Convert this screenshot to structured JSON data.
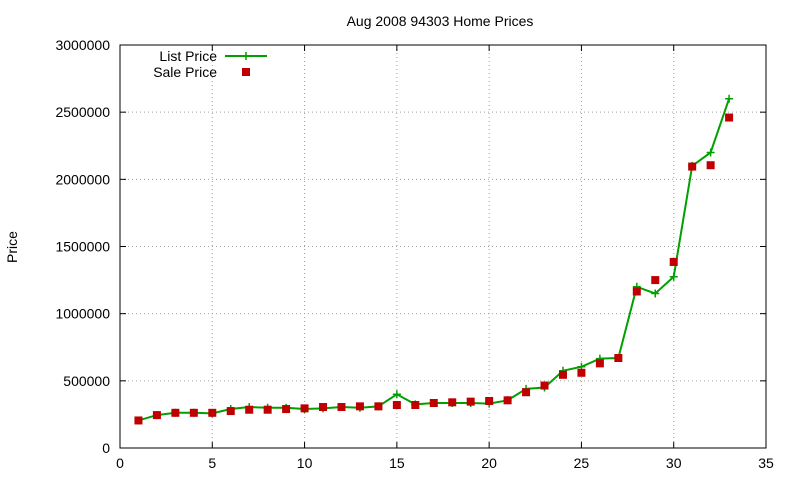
{
  "chart_data": {
    "type": "line",
    "title": "Aug 2008 94303 Home Prices",
    "xlabel": "",
    "ylabel": "Price",
    "xlim": [
      0,
      35
    ],
    "ylim": [
      0,
      3000000
    ],
    "x_ticks": [
      0,
      5,
      10,
      15,
      20,
      25,
      30,
      35
    ],
    "y_ticks": [
      0,
      500000,
      1000000,
      1500000,
      2000000,
      2500000,
      3000000
    ],
    "grid": true,
    "legend_position": "top-left",
    "series": [
      {
        "name": "List Price",
        "style": "line-with-plus-markers",
        "color": "#00a000",
        "points": [
          [
            1,
            205000
          ],
          [
            2,
            245000
          ],
          [
            3,
            262000
          ],
          [
            4,
            262000
          ],
          [
            5,
            258000
          ],
          [
            6,
            290000
          ],
          [
            7,
            305000
          ],
          [
            8,
            300000
          ],
          [
            9,
            300000
          ],
          [
            10,
            290000
          ],
          [
            11,
            295000
          ],
          [
            12,
            305000
          ],
          [
            13,
            300000
          ],
          [
            14,
            310000
          ],
          [
            15,
            400000
          ],
          [
            16,
            325000
          ],
          [
            17,
            335000
          ],
          [
            18,
            335000
          ],
          [
            19,
            335000
          ],
          [
            20,
            330000
          ],
          [
            21,
            355000
          ],
          [
            22,
            440000
          ],
          [
            23,
            450000
          ],
          [
            24,
            575000
          ],
          [
            25,
            605000
          ],
          [
            26,
            665000
          ],
          [
            27,
            670000
          ],
          [
            28,
            1200000
          ],
          [
            29,
            1150000
          ],
          [
            30,
            1275000
          ],
          [
            31,
            2100000
          ],
          [
            32,
            2200000
          ],
          [
            33,
            2600000
          ]
        ]
      },
      {
        "name": "Sale Price",
        "style": "square-markers",
        "color": "#c00000",
        "points": [
          [
            1,
            205000
          ],
          [
            2,
            245000
          ],
          [
            3,
            262000
          ],
          [
            4,
            262000
          ],
          [
            5,
            262000
          ],
          [
            6,
            275000
          ],
          [
            7,
            285000
          ],
          [
            8,
            285000
          ],
          [
            9,
            290000
          ],
          [
            10,
            295000
          ],
          [
            11,
            305000
          ],
          [
            12,
            305000
          ],
          [
            13,
            310000
          ],
          [
            14,
            310000
          ],
          [
            15,
            320000
          ],
          [
            16,
            320000
          ],
          [
            17,
            335000
          ],
          [
            18,
            340000
          ],
          [
            19,
            345000
          ],
          [
            20,
            350000
          ],
          [
            21,
            355000
          ],
          [
            22,
            415000
          ],
          [
            23,
            465000
          ],
          [
            24,
            545000
          ],
          [
            25,
            560000
          ],
          [
            26,
            630000
          ],
          [
            27,
            670000
          ],
          [
            28,
            1165000
          ],
          [
            29,
            1250000
          ],
          [
            30,
            1385000
          ],
          [
            31,
            2095000
          ],
          [
            32,
            2105000
          ],
          [
            33,
            2460000
          ]
        ]
      }
    ]
  }
}
